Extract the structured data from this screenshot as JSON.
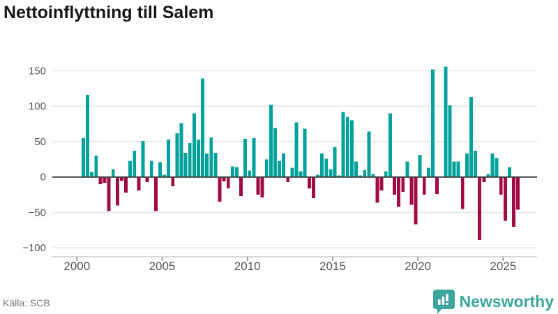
{
  "title": "Nettoinflyttning till Salem",
  "source": "Källa: SCB",
  "logo": {
    "text": "Newsworthy",
    "icon": "bar-chart-pin-icon"
  },
  "colors": {
    "positive_bar": "#00a29b",
    "negative_bar": "#a00c44",
    "grid_line": "#e5e5e5",
    "zero_line": "#3d3d3d",
    "axis_line": "#cccccc",
    "tick_mark": "#8a8a8a",
    "axis_text": "#555555",
    "title_text": "#161616",
    "logo_teal": "#3ea49e"
  },
  "chart_data": {
    "type": "bar",
    "title": "Nettoinflyttning till Salem",
    "xlabel": "",
    "ylabel": "",
    "frequency": "quarterly",
    "start": "2000 Q2",
    "end": "2025 Q4",
    "x_ticks": [
      2000,
      2005,
      2010,
      2015,
      2020,
      2025
    ],
    "y_ticks": [
      150,
      100,
      50,
      0,
      -50,
      -100
    ],
    "ylim": [
      -100,
      170
    ],
    "grid": true,
    "legend": "none",
    "series": [
      {
        "name": "Nettoinflyttning",
        "start_year": 2000,
        "start_quarter": 2,
        "values": [
          55,
          116,
          7,
          30,
          -10,
          -8,
          -48,
          11,
          -40,
          -5,
          -22,
          23,
          37,
          -19,
          51,
          -7,
          23,
          -48,
          21,
          3,
          53,
          -13,
          62,
          76,
          34,
          48,
          90,
          53,
          139,
          33,
          56,
          34,
          -35,
          -6,
          -16,
          15,
          14,
          -27,
          54,
          9,
          55,
          -25,
          -29,
          25,
          102,
          69,
          23,
          33,
          -7,
          13,
          77,
          8,
          68,
          -16,
          -30,
          3,
          33,
          26,
          11,
          42,
          2,
          92,
          85,
          80,
          22,
          2,
          10,
          64,
          4,
          -36,
          -19,
          8,
          90,
          -25,
          -42,
          -21,
          22,
          -39,
          -67,
          31,
          -25,
          13,
          152,
          -24,
          0,
          156,
          101,
          22,
          22,
          -45,
          33,
          113,
          37,
          -89,
          -7,
          4,
          33,
          27,
          -25,
          -62,
          14,
          -70,
          -46
        ]
      }
    ]
  }
}
